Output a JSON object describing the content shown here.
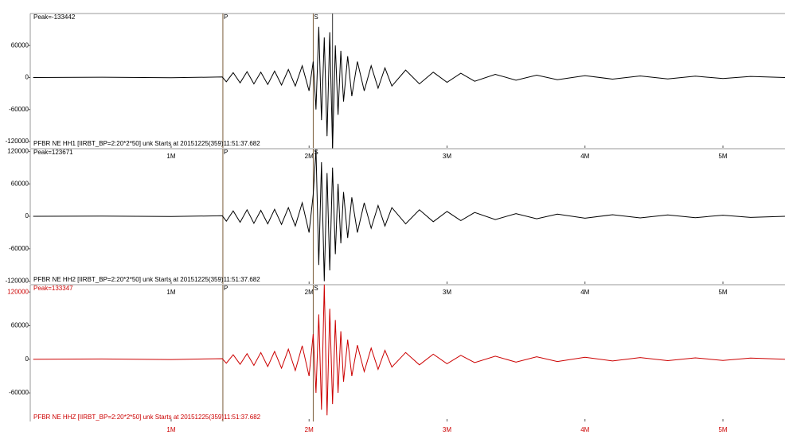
{
  "chart_data": [
    {
      "type": "line",
      "peak": "Peak=-133442",
      "footer": "PFBR NE HH1  [IIRBT_BP=2:20*2*50] unk Starts at 20151225(359)11:51:37.682",
      "color": "#000000",
      "label_color": "#000000",
      "xlim": [
        0,
        5.45
      ],
      "xticks": [
        {
          "value": 1,
          "label": "1M"
        },
        {
          "value": 2,
          "label": "2M"
        },
        {
          "value": 3,
          "label": "3M"
        },
        {
          "value": 4,
          "label": "4M"
        },
        {
          "value": 5,
          "label": "5M"
        }
      ],
      "ylim": [
        -132000,
        120000
      ],
      "yticks": [
        60000,
        0,
        -60000,
        -120000
      ],
      "picks": [
        {
          "label": "P",
          "x": 1.375
        },
        {
          "label": "S",
          "x": 2.03
        }
      ],
      "marker_x": [
        2.17
      ],
      "x": [
        0,
        0.5,
        1.0,
        1.37,
        1.4,
        1.45,
        1.5,
        1.55,
        1.6,
        1.65,
        1.7,
        1.75,
        1.8,
        1.85,
        1.9,
        1.95,
        2.0,
        2.03,
        2.05,
        2.07,
        2.09,
        2.11,
        2.13,
        2.15,
        2.17,
        2.19,
        2.21,
        2.23,
        2.25,
        2.28,
        2.31,
        2.35,
        2.4,
        2.45,
        2.5,
        2.55,
        2.6,
        2.7,
        2.8,
        2.9,
        3.0,
        3.1,
        3.2,
        3.35,
        3.5,
        3.65,
        3.8,
        4.0,
        4.2,
        4.4,
        4.6,
        4.8,
        5.0,
        5.2,
        5.45
      ],
      "values": [
        0,
        500,
        -500,
        1000,
        -8000,
        9000,
        -10000,
        11000,
        -12000,
        10000,
        -13000,
        12000,
        -14000,
        15000,
        -16000,
        22000,
        -25000,
        30000,
        -60000,
        95000,
        -80000,
        75000,
        -110000,
        85000,
        -133442,
        60000,
        -70000,
        50000,
        -45000,
        40000,
        -35000,
        30000,
        -25000,
        22000,
        -20000,
        18000,
        -16000,
        14000,
        -12000,
        10000,
        -9000,
        8000,
        -7000,
        6000,
        -5000,
        4500,
        -4000,
        3500,
        -3000,
        3000,
        -2500,
        2500,
        -2000,
        2000,
        0
      ]
    },
    {
      "type": "line",
      "peak": "Peak=123671",
      "footer": "PFBR NE HH2  [IIRBT_BP=2:20*2*50] unk Starts at 20151225(359)11:51:37.682",
      "color": "#000000",
      "label_color": "#000000",
      "xlim": [
        0,
        5.45
      ],
      "xticks": [
        {
          "value": 1,
          "label": "1M"
        },
        {
          "value": 2,
          "label": "2M"
        },
        {
          "value": 3,
          "label": "3M"
        },
        {
          "value": 4,
          "label": "4M"
        },
        {
          "value": 5,
          "label": "5M"
        }
      ],
      "ylim": [
        -125000,
        125000
      ],
      "yticks": [
        120000,
        60000,
        0,
        -60000,
        -120000
      ],
      "picks": [
        {
          "label": "P",
          "x": 1.375
        },
        {
          "label": "S",
          "x": 2.03
        }
      ],
      "x": [
        0,
        0.5,
        1.0,
        1.37,
        1.4,
        1.45,
        1.5,
        1.55,
        1.6,
        1.65,
        1.7,
        1.75,
        1.8,
        1.85,
        1.9,
        1.95,
        2.0,
        2.03,
        2.05,
        2.07,
        2.09,
        2.11,
        2.13,
        2.15,
        2.17,
        2.19,
        2.21,
        2.23,
        2.25,
        2.28,
        2.31,
        2.35,
        2.4,
        2.45,
        2.5,
        2.55,
        2.6,
        2.7,
        2.8,
        2.9,
        3.0,
        3.1,
        3.2,
        3.35,
        3.5,
        3.65,
        3.8,
        4.0,
        4.2,
        4.4,
        4.6,
        4.8,
        5.0,
        5.2,
        5.45
      ],
      "values": [
        0,
        500,
        -500,
        1000,
        -9000,
        10000,
        -11000,
        12000,
        -13000,
        11000,
        -14000,
        13000,
        -15000,
        16000,
        -18000,
        25000,
        -30000,
        40000,
        123671,
        -90000,
        100000,
        -120000,
        80000,
        -100000,
        90000,
        -70000,
        60000,
        -50000,
        45000,
        -40000,
        35000,
        -30000,
        25000,
        -22000,
        20000,
        -18000,
        16000,
        -14000,
        12000,
        -10000,
        9000,
        -8000,
        7000,
        -6000,
        5000,
        -4500,
        4000,
        -3500,
        3000,
        -3000,
        2500,
        -2500,
        2000,
        -2000,
        0
      ]
    },
    {
      "type": "line",
      "peak": "Peak=133347",
      "footer": "PFBR NE HHZ  [IIRBT_BP=2:20*2*50] unk Starts at 20151225(359)11:51:37.682",
      "color": "#cc0000",
      "label_color": "#cc0000",
      "xlim": [
        0,
        5.45
      ],
      "xticks": [
        {
          "value": 1,
          "label": "1M"
        },
        {
          "value": 2,
          "label": "2M"
        },
        {
          "value": 3,
          "label": "3M"
        },
        {
          "value": 4,
          "label": "4M"
        },
        {
          "value": 5,
          "label": "5M"
        }
      ],
      "ylim": [
        -111000,
        133000
      ],
      "yticks": [
        120000,
        60000,
        0,
        -60000
      ],
      "picks": [
        {
          "label": "P",
          "x": 1.375
        },
        {
          "label": "S",
          "x": 2.03
        }
      ],
      "x": [
        0,
        0.5,
        1.0,
        1.37,
        1.4,
        1.45,
        1.5,
        1.55,
        1.6,
        1.65,
        1.7,
        1.75,
        1.8,
        1.85,
        1.9,
        1.95,
        2.0,
        2.03,
        2.05,
        2.07,
        2.09,
        2.11,
        2.13,
        2.15,
        2.17,
        2.19,
        2.21,
        2.23,
        2.25,
        2.28,
        2.31,
        2.35,
        2.4,
        2.45,
        2.5,
        2.55,
        2.6,
        2.7,
        2.8,
        2.9,
        3.0,
        3.1,
        3.2,
        3.35,
        3.5,
        3.65,
        3.8,
        4.0,
        4.2,
        4.4,
        4.6,
        4.8,
        5.0,
        5.2,
        5.45
      ],
      "values": [
        0,
        500,
        -500,
        1000,
        -7000,
        8000,
        -9000,
        10000,
        -11000,
        12000,
        -13000,
        14000,
        -16000,
        18000,
        -20000,
        24000,
        -30000,
        45000,
        -60000,
        80000,
        -90000,
        133347,
        -100000,
        90000,
        -80000,
        70000,
        -60000,
        50000,
        -40000,
        35000,
        -30000,
        25000,
        -22000,
        20000,
        -18000,
        16000,
        -14000,
        12000,
        -10000,
        9000,
        -8000,
        7000,
        -6000,
        5500,
        -5000,
        4500,
        -4000,
        3500,
        -3000,
        3000,
        -2500,
        2500,
        -2000,
        2000,
        0
      ]
    }
  ]
}
